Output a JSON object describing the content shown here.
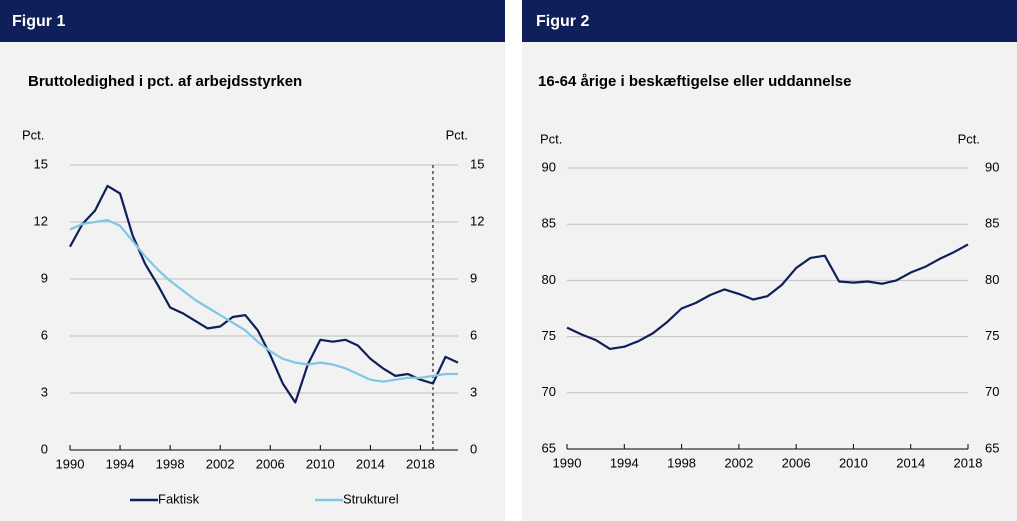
{
  "chart_data": [
    {
      "type": "line",
      "header": "Figur 1",
      "title": "Bruttoledighed i pct. af arbejdsstyrken",
      "ylabel": "Pct.",
      "y2label": "Pct.",
      "x": [
        1990,
        1991,
        1992,
        1993,
        1994,
        1995,
        1996,
        1997,
        1998,
        1999,
        2000,
        2001,
        2002,
        2003,
        2004,
        2005,
        2006,
        2007,
        2008,
        2009,
        2010,
        2011,
        2012,
        2013,
        2014,
        2015,
        2016,
        2017,
        2018,
        2019,
        2020,
        2021
      ],
      "series": [
        {
          "name": "Faktisk",
          "color": "#0f1f5a",
          "values": [
            10.7,
            11.9,
            12.6,
            13.9,
            13.5,
            11.3,
            9.8,
            8.7,
            7.5,
            7.2,
            6.8,
            6.4,
            6.5,
            7.0,
            7.1,
            6.3,
            5.0,
            3.5,
            2.5,
            4.5,
            5.8,
            5.7,
            5.8,
            5.5,
            4.8,
            4.3,
            3.9,
            4.0,
            3.7,
            3.5,
            4.9,
            4.6
          ]
        },
        {
          "name": "Strukturel",
          "color": "#7ec8e3",
          "values": [
            11.6,
            11.9,
            12.0,
            12.1,
            11.8,
            11.0,
            10.2,
            9.5,
            8.9,
            8.4,
            7.9,
            7.5,
            7.1,
            6.7,
            6.3,
            5.7,
            5.2,
            4.8,
            4.6,
            4.5,
            4.6,
            4.5,
            4.3,
            4.0,
            3.7,
            3.6,
            3.7,
            3.8,
            3.8,
            3.9,
            4.0,
            4.0
          ]
        }
      ],
      "xlim": [
        1990,
        2021
      ],
      "xticks": [
        1990,
        1994,
        1998,
        2002,
        2006,
        2010,
        2014,
        2018
      ],
      "ylim": [
        0,
        15
      ],
      "yticks": [
        0,
        3,
        6,
        9,
        12,
        15
      ],
      "y2lim": [
        0,
        15
      ],
      "y2ticks": [
        0,
        3,
        6,
        9,
        12,
        15
      ],
      "vline": 2019,
      "grid": true,
      "legend": "bottom"
    },
    {
      "type": "line",
      "header": "Figur 2",
      "title": "16-64 årige i beskæftigelse eller uddannelse",
      "ylabel": "Pct.",
      "y2label": "Pct.",
      "x": [
        1990,
        1991,
        1992,
        1993,
        1994,
        1995,
        1996,
        1997,
        1998,
        1999,
        2000,
        2001,
        2002,
        2003,
        2004,
        2005,
        2006,
        2007,
        2008,
        2009,
        2010,
        2011,
        2012,
        2013,
        2014,
        2015,
        2016,
        2017,
        2018
      ],
      "series": [
        {
          "color": "#0f1f5a",
          "values": [
            75.8,
            75.2,
            74.7,
            73.9,
            74.1,
            74.6,
            75.3,
            76.3,
            77.5,
            78.0,
            78.7,
            79.2,
            78.8,
            78.3,
            78.6,
            79.6,
            81.1,
            82.0,
            82.2,
            79.9,
            79.8,
            79.9,
            79.7,
            80.0,
            80.7,
            81.2,
            81.9,
            82.5,
            83.2
          ]
        }
      ],
      "xlim": [
        1990,
        2018
      ],
      "xticks": [
        1990,
        1994,
        1998,
        2002,
        2006,
        2010,
        2014,
        2018
      ],
      "ylim": [
        65,
        90
      ],
      "yticks": [
        65,
        70,
        75,
        80,
        85,
        90
      ],
      "y2lim": [
        65,
        90
      ],
      "y2ticks": [
        65,
        70,
        75,
        80,
        85,
        90
      ],
      "grid": true
    }
  ]
}
